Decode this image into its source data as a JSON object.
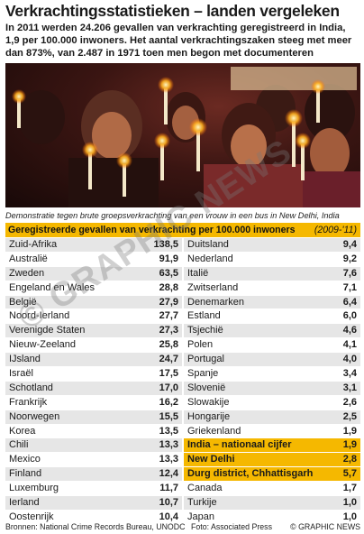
{
  "title": "Verkrachtingsstatistieken – landen vergeleken",
  "intro": "In 2011 werden 24.206 gevallen van verkrachting geregistreerd in India, 1,9 per 100.000 inwoners. Het aantal verkrachtingszaken steeg met meer dan 873%, van 2.487 in 1971 toen men begon met documenteren",
  "caption": "Demonstratie tegen brute groepsverkrachting van een vrouw in een bus in New Delhi, India",
  "table": {
    "header": "Geregistreerde gevallen van verkrachting per 100.000 inwoners",
    "period": "(2009-'11)",
    "left": [
      {
        "country": "Zuid-Afrika",
        "value": "138,5"
      },
      {
        "country": "Australië",
        "value": "91,9"
      },
      {
        "country": "Zweden",
        "value": "63,5"
      },
      {
        "country": "Engeland en Wales",
        "value": "28,8"
      },
      {
        "country": "België",
        "value": "27,9"
      },
      {
        "country": "Noord-Ierland",
        "value": "27,7"
      },
      {
        "country": "Verenigde Staten",
        "value": "27,3"
      },
      {
        "country": "Nieuw-Zeeland",
        "value": "25,8"
      },
      {
        "country": "IJsland",
        "value": "24,7"
      },
      {
        "country": "Israël",
        "value": "17,5"
      },
      {
        "country": "Schotland",
        "value": "17,0"
      },
      {
        "country": "Frankrijk",
        "value": "16,2"
      },
      {
        "country": "Noorwegen",
        "value": "15,5"
      },
      {
        "country": "Korea",
        "value": "13,5"
      },
      {
        "country": "Chili",
        "value": "13,3"
      },
      {
        "country": "Mexico",
        "value": "13,3"
      },
      {
        "country": "Finland",
        "value": "12,4"
      },
      {
        "country": "Luxemburg",
        "value": "11,7"
      },
      {
        "country": "Ierland",
        "value": "10,7"
      },
      {
        "country": "Oostenrijk",
        "value": "10,4"
      }
    ],
    "right": [
      {
        "country": "Duitsland",
        "value": "9,4"
      },
      {
        "country": "Nederland",
        "value": "9,2"
      },
      {
        "country": "Italië",
        "value": "7,6"
      },
      {
        "country": "Zwitserland",
        "value": "7,1"
      },
      {
        "country": "Denemarken",
        "value": "6,4"
      },
      {
        "country": "Estland",
        "value": "6,0"
      },
      {
        "country": "Tsjechië",
        "value": "4,6"
      },
      {
        "country": "Polen",
        "value": "4,1"
      },
      {
        "country": "Portugal",
        "value": "4,0"
      },
      {
        "country": "Spanje",
        "value": "3,4"
      },
      {
        "country": "Slovenië",
        "value": "3,1"
      },
      {
        "country": "Slowakije",
        "value": "2,6"
      },
      {
        "country": "Hongarije",
        "value": "2,5"
      },
      {
        "country": "Griekenland",
        "value": "1,9"
      },
      {
        "country": "India – nationaal cijfer",
        "value": "1,9",
        "highlight": true
      },
      {
        "country": "New Delhi",
        "value": "2,8",
        "highlight": true
      },
      {
        "country": "Durg district, Chhattisgarh",
        "value": "5,7",
        "highlight": true
      },
      {
        "country": "Canada",
        "value": "1,7"
      },
      {
        "country": "Turkije",
        "value": "1,0"
      },
      {
        "country": "Japan",
        "value": "1,0"
      }
    ]
  },
  "footer": {
    "sources": "Bronnen: National Crime Records Bureau, UNODC",
    "photo": "Foto: Associated Press",
    "copyright": "© GRAPHIC NEWS"
  },
  "watermark": "© GRAPHIC NEWS",
  "colors": {
    "accent": "#f5b800",
    "row_alt": "#e6e6e6"
  }
}
